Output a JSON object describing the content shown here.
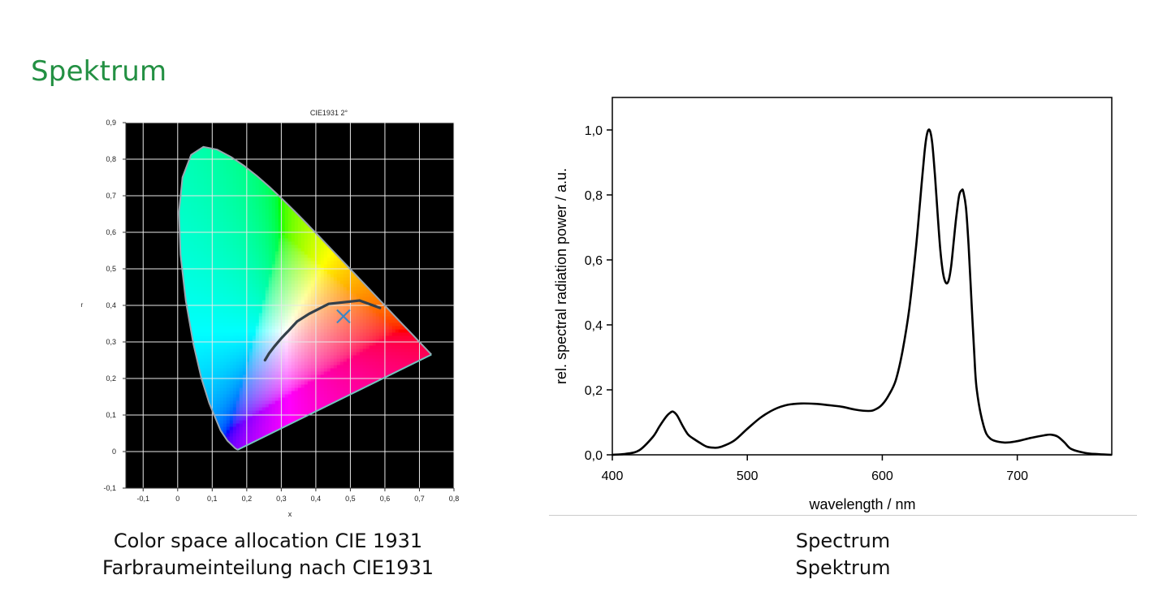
{
  "page": {
    "title": "Spektrum",
    "captions": {
      "left": [
        "Color space allocation CIE 1931",
        "Farbraumeinteilung nach CIE1931"
      ],
      "right": [
        "Spectrum",
        "Spektrum"
      ]
    }
  },
  "chart_data": [
    {
      "type": "scatter",
      "title": "CIE1931 2°",
      "xlabel": "x",
      "ylabel": "r",
      "xlim": [
        -0.15,
        0.8
      ],
      "ylim": [
        -0.1,
        0.9
      ],
      "x_ticks": [
        "-0,1",
        "0",
        "0,1",
        "0,2",
        "0,3",
        "0,4",
        "0,5",
        "0,6",
        "0,7",
        "0,8"
      ],
      "y_ticks": [
        "0,9",
        "0,8",
        "0,7",
        "0,6",
        "0,5",
        "0,4",
        "0,3",
        "0,2",
        "0,1",
        "0",
        "-0,1"
      ],
      "grid": true,
      "background": "#000000",
      "spectral_locus": [
        [
          0.1741,
          0.005
        ],
        [
          0.1738,
          0.0049
        ],
        [
          0.1666,
          0.0089
        ],
        [
          0.144,
          0.0297
        ],
        [
          0.1241,
          0.0578
        ],
        [
          0.0913,
          0.1327
        ],
        [
          0.0687,
          0.2007
        ],
        [
          0.0454,
          0.295
        ],
        [
          0.0235,
          0.4127
        ],
        [
          0.0082,
          0.5384
        ],
        [
          0.0039,
          0.6548
        ],
        [
          0.0139,
          0.7502
        ],
        [
          0.0389,
          0.812
        ],
        [
          0.0743,
          0.8338
        ],
        [
          0.1142,
          0.8262
        ],
        [
          0.1547,
          0.8059
        ],
        [
          0.1929,
          0.7816
        ],
        [
          0.2296,
          0.7543
        ],
        [
          0.2658,
          0.7243
        ],
        [
          0.3016,
          0.6923
        ],
        [
          0.3373,
          0.6589
        ],
        [
          0.3731,
          0.6245
        ],
        [
          0.4087,
          0.5896
        ],
        [
          0.4441,
          0.5547
        ],
        [
          0.4788,
          0.5202
        ],
        [
          0.5125,
          0.4866
        ],
        [
          0.5448,
          0.4544
        ],
        [
          0.5752,
          0.4242
        ],
        [
          0.6029,
          0.3965
        ],
        [
          0.627,
          0.3725
        ],
        [
          0.6482,
          0.3514
        ],
        [
          0.6658,
          0.334
        ],
        [
          0.6801,
          0.3197
        ],
        [
          0.6915,
          0.3083
        ],
        [
          0.7006,
          0.2993
        ],
        [
          0.7079,
          0.292
        ],
        [
          0.714,
          0.2859
        ],
        [
          0.719,
          0.2809
        ],
        [
          0.723,
          0.277
        ],
        [
          0.726,
          0.274
        ],
        [
          0.7283,
          0.2717
        ],
        [
          0.73,
          0.27
        ],
        [
          0.7347,
          0.2653
        ]
      ],
      "planckian_locus": [
        [
          0.2527,
          0.25
        ],
        [
          0.2644,
          0.2683
        ],
        [
          0.2806,
          0.2883
        ],
        [
          0.3003,
          0.3103
        ],
        [
          0.3138,
          0.3236
        ],
        [
          0.3221,
          0.3318
        ],
        [
          0.3457,
          0.3559
        ],
        [
          0.3805,
          0.3768
        ],
        [
          0.4369,
          0.4041
        ],
        [
          0.5267,
          0.4133
        ],
        [
          0.5857,
          0.3931
        ]
      ],
      "series": [
        {
          "name": "",
          "x": [
            0.48
          ],
          "y": [
            0.37
          ],
          "marker": "x",
          "color": "#3d86c4"
        }
      ]
    },
    {
      "type": "line",
      "xlabel": "wavelength / nm",
      "ylabel": "rel. spectral radiation power / a.u.",
      "xlim": [
        400,
        770
      ],
      "ylim": [
        0.0,
        1.1
      ],
      "x_ticks": [
        "400",
        "500",
        "600",
        "700"
      ],
      "y_ticks": [
        "0,0",
        "0,2",
        "0,4",
        "0,6",
        "0,8",
        "1,0"
      ],
      "grid": false,
      "series": [
        {
          "name": "",
          "color": "#000000",
          "x": [
            400,
            410,
            420,
            430,
            435,
            440,
            443,
            445,
            448,
            452,
            456,
            460,
            466,
            470,
            475,
            480,
            490,
            500,
            510,
            520,
            530,
            540,
            550,
            560,
            570,
            580,
            590,
            595,
            600,
            605,
            610,
            615,
            620,
            625,
            628,
            631,
            633,
            635,
            637,
            639,
            641,
            643,
            645,
            647,
            649,
            651,
            653,
            655,
            657,
            659,
            660,
            662,
            664,
            666,
            668,
            670,
            675,
            680,
            690,
            700,
            710,
            720,
            725,
            730,
            735,
            740,
            750,
            760,
            770
          ],
          "y": [
            0.0,
            0.003,
            0.014,
            0.055,
            0.088,
            0.118,
            0.13,
            0.133,
            0.121,
            0.09,
            0.063,
            0.05,
            0.034,
            0.025,
            0.022,
            0.024,
            0.043,
            0.08,
            0.115,
            0.14,
            0.154,
            0.158,
            0.157,
            0.153,
            0.148,
            0.139,
            0.135,
            0.14,
            0.155,
            0.185,
            0.23,
            0.32,
            0.45,
            0.64,
            0.78,
            0.92,
            0.985,
            1.0,
            0.96,
            0.86,
            0.74,
            0.63,
            0.56,
            0.53,
            0.535,
            0.58,
            0.66,
            0.74,
            0.8,
            0.815,
            0.81,
            0.76,
            0.64,
            0.48,
            0.32,
            0.2,
            0.09,
            0.05,
            0.038,
            0.042,
            0.052,
            0.06,
            0.062,
            0.056,
            0.038,
            0.018,
            0.006,
            0.002,
            0.0
          ]
        }
      ]
    }
  ]
}
